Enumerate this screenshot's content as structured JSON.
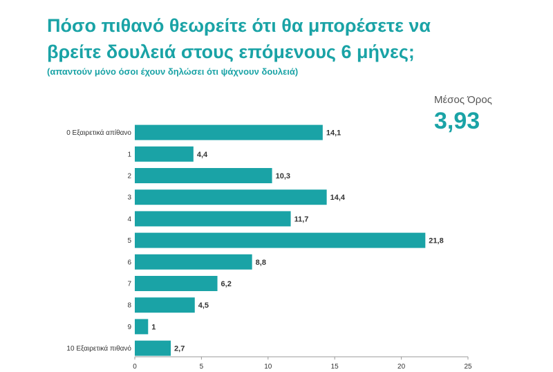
{
  "chart_data": {
    "type": "bar",
    "orientation": "horizontal",
    "title": "Πόσο πιθανό θεωρείτε ότι θα μπορέσετε να βρείτε δουλειά στους επόμενους 6 μήνες;",
    "subtitle": "(απαντούν μόνο όσοι έχουν δηλώσει ότι ψάχνουν δουλειά)",
    "categories": [
      "0 Εξαιρετικά απίθανο",
      "1",
      "2",
      "3",
      "4",
      "5",
      "6",
      "7",
      "8",
      "9",
      "10 Εξαιρετικά πιθανό"
    ],
    "values": [
      14.1,
      4.4,
      10.3,
      14.4,
      11.7,
      21.8,
      8.8,
      6.2,
      4.5,
      1,
      2.7
    ],
    "value_labels": [
      "14,1",
      "4,4",
      "10,3",
      "14,4",
      "11,7",
      "21,8",
      "8,8",
      "6,2",
      "4,5",
      "1",
      "2,7"
    ],
    "xlim": [
      0,
      25
    ],
    "xticks": [
      0,
      5,
      10,
      15,
      20,
      25
    ],
    "xlabel": "",
    "ylabel": "",
    "bar_color": "#1aa3a6",
    "mean_label": "Μέσος Όρος",
    "mean_value": "3,93"
  }
}
